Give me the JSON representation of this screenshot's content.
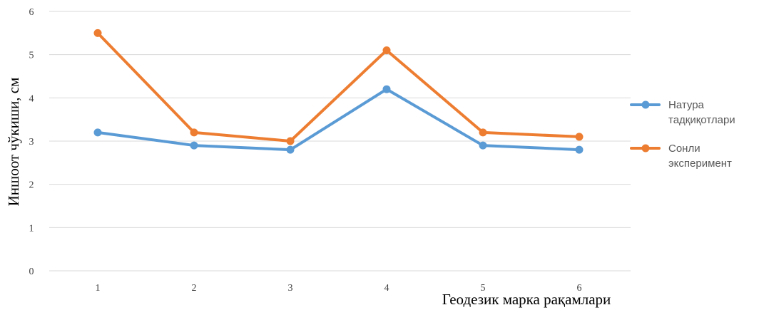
{
  "chart_data": {
    "type": "line",
    "x": [
      1,
      2,
      3,
      4,
      5,
      6
    ],
    "x_tick_labels": [
      "1",
      "2",
      "3",
      "4",
      "5",
      "6"
    ],
    "y_tick_labels": [
      "0",
      "1",
      "2",
      "3",
      "4",
      "5",
      "6"
    ],
    "ylim": [
      0,
      6
    ],
    "grid": true,
    "legend_position": "right",
    "xlabel": "Геодезик марка рақамлари",
    "ylabel": "Иншоот чўкиши, см",
    "series": [
      {
        "name_lines": [
          "Натура",
          "тадқиқотлари"
        ],
        "color": "#5B9BD5",
        "values": [
          3.2,
          2.9,
          2.8,
          4.2,
          2.9,
          2.8
        ]
      },
      {
        "name_lines": [
          "Сонли",
          "эксперимент"
        ],
        "color": "#ED7D31",
        "values": [
          5.5,
          3.2,
          3.0,
          5.1,
          3.2,
          3.1
        ]
      }
    ]
  }
}
